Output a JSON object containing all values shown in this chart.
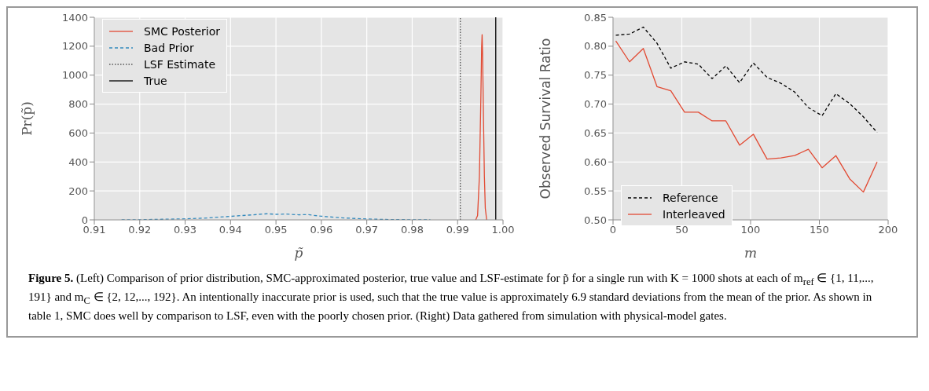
{
  "chart_data": [
    {
      "type": "line",
      "xlabel": "p̃",
      "ylabel": "Pr(p̃)",
      "xlim": [
        0.91,
        1.0
      ],
      "xticks": [
        0.91,
        0.92,
        0.93,
        0.94,
        0.95,
        0.96,
        0.97,
        0.98,
        0.99,
        {
          "value": 1.0,
          "label": "1.00"
        }
      ],
      "ylim": [
        0,
        1400
      ],
      "yticks": [
        0,
        200,
        400,
        600,
        800,
        1000,
        1200,
        1400
      ],
      "grid": true,
      "legend": "top left",
      "marker": "none",
      "series": [
        {
          "name": "SMC Posterior",
          "color": "#e24a33",
          "line_style": "solid",
          "x": [
            0.994,
            0.9944,
            0.9948,
            0.9951,
            0.9953,
            0.9954,
            0.9955,
            0.9957,
            0.9959,
            0.9961,
            0.9964
          ],
          "values": [
            0,
            30,
            300,
            800,
            1200,
            1280,
            1150,
            700,
            300,
            80,
            0
          ]
        },
        {
          "name": "Bad Prior",
          "color": "#348abd",
          "line_style": "dashed",
          "x": [
            0.916,
            0.92,
            0.925,
            0.93,
            0.935,
            0.94,
            0.945,
            0.948,
            0.95,
            0.952,
            0.955,
            0.957,
            0.96,
            0.965,
            0.97,
            0.975,
            0.98,
            0.984
          ],
          "values": [
            0,
            1,
            4,
            7,
            13,
            24,
            35,
            42,
            38,
            40,
            35,
            36,
            25,
            13,
            6,
            2,
            1,
            0
          ]
        },
        {
          "name": "LSF Estimate",
          "color": "#555555",
          "line_style": "dotted",
          "x": [
            0.9906,
            0.9906
          ],
          "values": [
            0,
            1400
          ]
        },
        {
          "name": "True",
          "color": "#000000",
          "line_style": "solid",
          "x": [
            0.9984,
            0.9984
          ],
          "values": [
            0,
            1400
          ]
        }
      ],
      "annotations": [
        "Figure 5.",
        "(Left) Comparison of prior distribution, SMC-approximated posterior, true value and LSF-estimate for p̃ for a single run with K = 1000 shots at each of m$_{ref}$ ∈ {1, 11,..., 191} and m$_{C}$ ∈ {2, 12,..., 192}. An intentionally inaccurate prior is used, such that the true value is approximately 6.9 standard deviations from the mean of the prior. As shown in table 1, SMC does well by comparison to LSF, even with the poorly chosen prior. (Right) Data gathered from simulation with physical-model gates."
      ]
    },
    {
      "type": "line",
      "xlabel": "m",
      "ylabel": "Observed Survival Ratio",
      "xlim": [
        0,
        200
      ],
      "xticks": [
        0,
        50,
        100,
        150,
        200
      ],
      "ylim": [
        0.5,
        0.85
      ],
      "yticks": [
        {
          "value": 0.5,
          "label": "0.50"
        },
        0.55,
        {
          "value": 0.6,
          "label": "0.60"
        },
        0.65,
        {
          "value": 0.7,
          "label": "0.70"
        },
        0.75,
        {
          "value": 0.8,
          "label": "0.80"
        },
        0.85
      ],
      "grid": true,
      "legend": "bottom left",
      "marker": "none",
      "x": [
        2,
        12,
        22,
        32,
        42,
        52,
        62,
        72,
        82,
        92,
        102,
        112,
        122,
        132,
        142,
        152,
        162,
        172,
        182,
        192
      ],
      "series": [
        {
          "name": "Reference",
          "color": "#000000",
          "line_style": "dashed",
          "values": [
            0.819,
            0.821,
            0.833,
            0.805,
            0.762,
            0.773,
            0.769,
            0.744,
            0.766,
            0.737,
            0.771,
            0.746,
            0.736,
            0.721,
            0.694,
            0.68,
            0.718,
            0.701,
            0.678,
            0.651
          ]
        },
        {
          "name": "Interleaved",
          "color": "#e24a33",
          "line_style": "solid",
          "values": [
            0.809,
            0.773,
            0.796,
            0.73,
            0.723,
            0.686,
            0.686,
            0.671,
            0.671,
            0.629,
            0.648,
            0.605,
            0.607,
            0.611,
            0.622,
            0.59,
            0.611,
            0.571,
            0.548,
            0.6
          ]
        }
      ]
    }
  ]
}
